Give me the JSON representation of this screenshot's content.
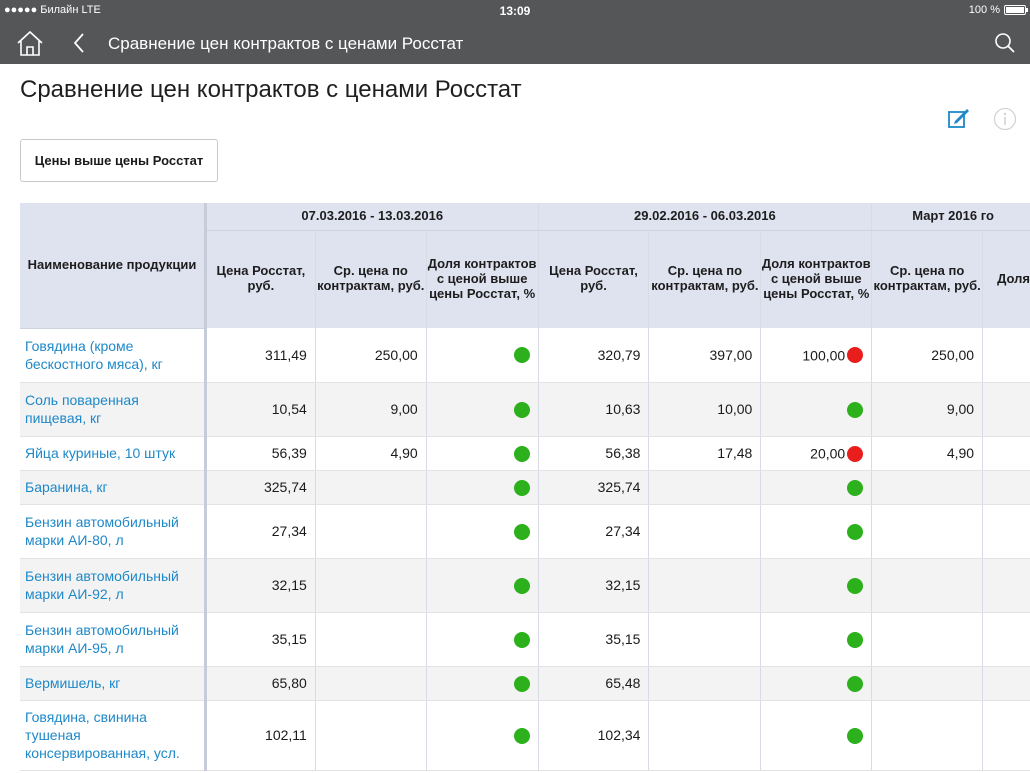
{
  "status_bar": {
    "carrier": "●●●●● Билайн  LTE",
    "time": "13:09",
    "battery": "100 %",
    "battery_level": 1.0
  },
  "nav": {
    "title": "Сравнение цен контрактов с ценами Росстат"
  },
  "page": {
    "title": "Сравнение цен контрактов с ценами Росстат",
    "filter_button": "Цены выше цены Росстат"
  },
  "colors": {
    "header_bg": "#555658",
    "link": "#1e88c8",
    "ok": "#2cb01b",
    "alert": "#ea1d1d",
    "table_header_bg": "#dfe3f0"
  },
  "table": {
    "name_header": "Наименование продукции",
    "groups": [
      {
        "label": "07.03.2016 - 13.03.2016"
      },
      {
        "label": "29.02.2016 - 06.03.2016"
      },
      {
        "label": "Март 2016 го"
      }
    ],
    "sub_headers": {
      "rosstat": "Цена Росстат, руб.",
      "avg": "Ср. цена по контрактам, руб.",
      "share": "Доля контрактов с ценой выше цены Росстат, %",
      "share_cut": "Доля с выш Ро"
    },
    "rows": [
      {
        "name": "Говядина (кроме бескостного мяса), кг",
        "g1": {
          "rosstat": "311,49",
          "avg": "250,00",
          "pct": "",
          "status": "ok"
        },
        "g2": {
          "rosstat": "320,79",
          "avg": "397,00",
          "pct": "100,00",
          "status": "alert"
        },
        "g3": {
          "avg": "250,00"
        }
      },
      {
        "name": "Соль поваренная пищевая, кг",
        "g1": {
          "rosstat": "10,54",
          "avg": "9,00",
          "pct": "",
          "status": "ok"
        },
        "g2": {
          "rosstat": "10,63",
          "avg": "10,00",
          "pct": "",
          "status": "ok"
        },
        "g3": {
          "avg": "9,00"
        }
      },
      {
        "name": "Яйца куриные, 10 штук",
        "g1": {
          "rosstat": "56,39",
          "avg": "4,90",
          "pct": "",
          "status": "ok"
        },
        "g2": {
          "rosstat": "56,38",
          "avg": "17,48",
          "pct": "20,00",
          "status": "alert"
        },
        "g3": {
          "avg": "4,90"
        }
      },
      {
        "name": "Баранина, кг",
        "g1": {
          "rosstat": "325,74",
          "avg": "",
          "pct": "",
          "status": "ok"
        },
        "g2": {
          "rosstat": "325,74",
          "avg": "",
          "pct": "",
          "status": "ok"
        },
        "g3": {
          "avg": ""
        }
      },
      {
        "name": "Бензин автомобильный марки АИ-80, л",
        "g1": {
          "rosstat": "27,34",
          "avg": "",
          "pct": "",
          "status": "ok"
        },
        "g2": {
          "rosstat": "27,34",
          "avg": "",
          "pct": "",
          "status": "ok"
        },
        "g3": {
          "avg": ""
        }
      },
      {
        "name": "Бензин автомобильный марки АИ-92, л",
        "g1": {
          "rosstat": "32,15",
          "avg": "",
          "pct": "",
          "status": "ok"
        },
        "g2": {
          "rosstat": "32,15",
          "avg": "",
          "pct": "",
          "status": "ok"
        },
        "g3": {
          "avg": ""
        }
      },
      {
        "name": "Бензин автомобильный марки АИ-95, л",
        "g1": {
          "rosstat": "35,15",
          "avg": "",
          "pct": "",
          "status": "ok"
        },
        "g2": {
          "rosstat": "35,15",
          "avg": "",
          "pct": "",
          "status": "ok"
        },
        "g3": {
          "avg": ""
        }
      },
      {
        "name": "Вермишель, кг",
        "g1": {
          "rosstat": "65,80",
          "avg": "",
          "pct": "",
          "status": "ok"
        },
        "g2": {
          "rosstat": "65,48",
          "avg": "",
          "pct": "",
          "status": "ok"
        },
        "g3": {
          "avg": ""
        }
      },
      {
        "name": "Говядина, свинина тушеная консервированная, усл.",
        "g1": {
          "rosstat": "102,11",
          "avg": "",
          "pct": "",
          "status": "ok"
        },
        "g2": {
          "rosstat": "102,34",
          "avg": "",
          "pct": "",
          "status": "ok"
        },
        "g3": {
          "avg": ""
        }
      }
    ]
  }
}
